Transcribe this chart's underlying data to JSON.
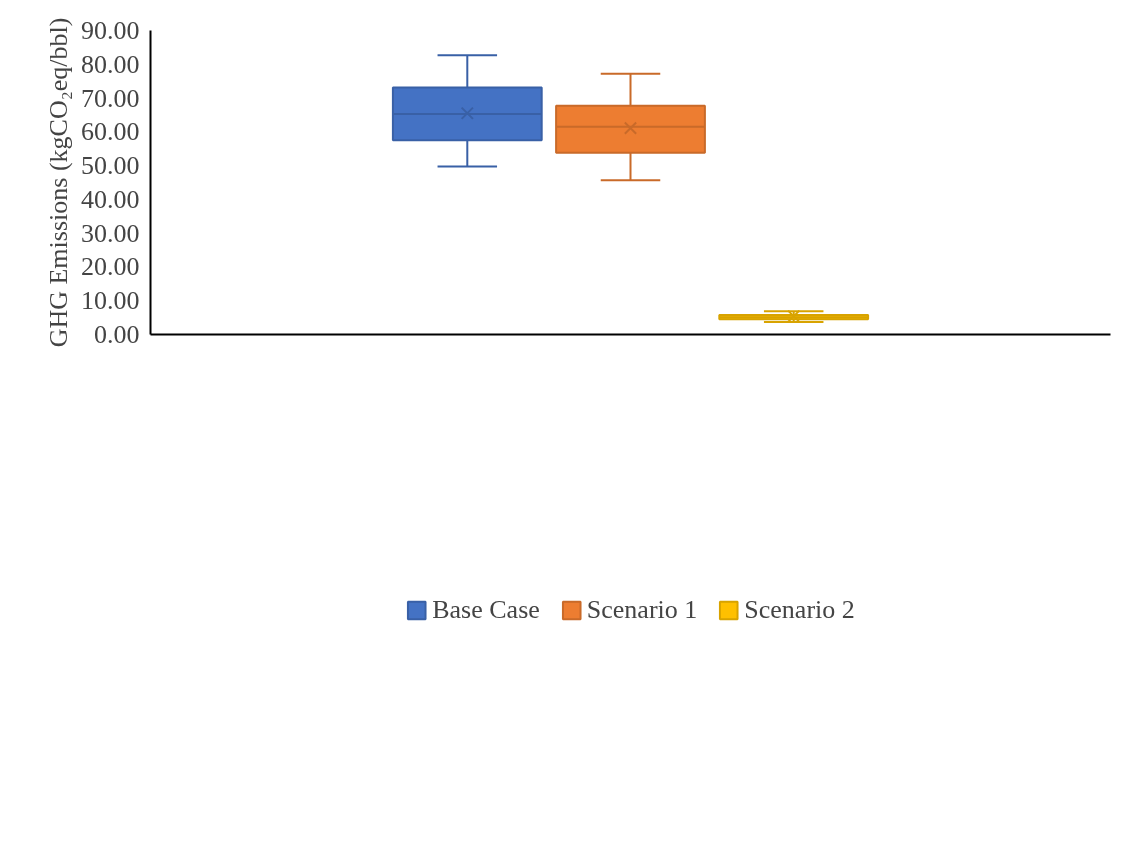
{
  "chart_data": {
    "type": "box",
    "ylabel": "GHG Emissions (kgCO₂eq/bbl)",
    "categories": [
      null
    ],
    "series": [
      {
        "name": "Base Case",
        "color": "#4472c4",
        "boxes": [
          {
            "low": 49.7,
            "q1": 57.5,
            "median": 65.3,
            "q3": 73.1,
            "high": 82.7,
            "mean": 65.5
          }
        ]
      },
      {
        "name": "Scenario 1",
        "color": "#ed7d31",
        "boxes": [
          {
            "low": 45.7,
            "q1": 53.8,
            "median": 61.5,
            "q3": 67.7,
            "high": 77.2,
            "mean": 61.1
          }
        ]
      },
      {
        "name": "Scenario 2",
        "color": "#ffc000",
        "boxes": [
          {
            "low": 3.7,
            "q1": 4.5,
            "median": 5.1,
            "q3": 5.8,
            "high": 6.9,
            "mean": 5.4
          }
        ]
      }
    ],
    "ylim": [
      0,
      90
    ],
    "yticks": [
      {
        "value": 0,
        "label": "0.00"
      },
      {
        "value": 10,
        "label": "10.00"
      },
      {
        "value": 20,
        "label": "20.00"
      },
      {
        "value": 30,
        "label": "30.00"
      },
      {
        "value": 40,
        "label": "40.00"
      },
      {
        "value": 50,
        "label": "50.00"
      },
      {
        "value": 60,
        "label": "60.00"
      },
      {
        "value": 70,
        "label": "70.00"
      },
      {
        "value": 80,
        "label": "80.00"
      },
      {
        "value": 90,
        "label": "90.00"
      }
    ],
    "marker": "cross",
    "grid": false,
    "legend": "bottom"
  }
}
